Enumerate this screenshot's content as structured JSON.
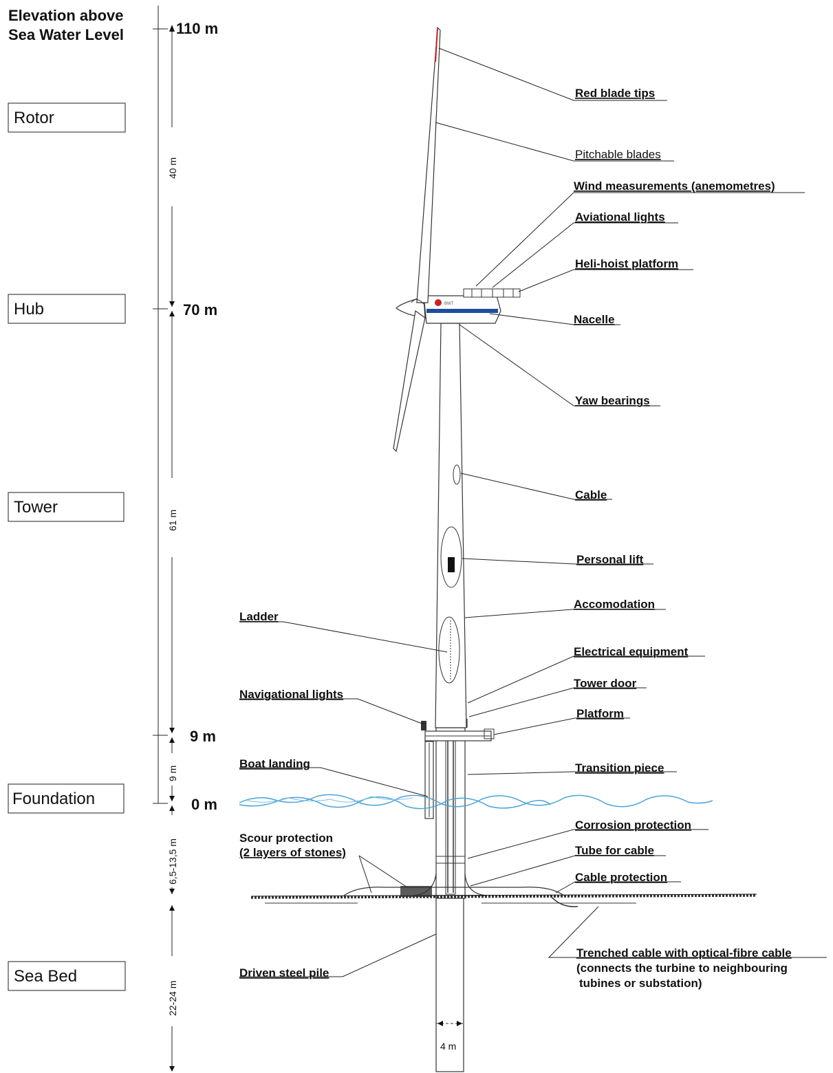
{
  "header": {
    "title_line1": "Elevation above",
    "title_line2": "Sea Water Level"
  },
  "sections": {
    "rotor": "Rotor",
    "hub": "Hub",
    "tower": "Tower",
    "foundation": "Foundation",
    "sea_bed": "Sea Bed"
  },
  "elevations": {
    "e110": "110 m",
    "e70": "70 m",
    "e9": "9 m",
    "e0": "0 m"
  },
  "dimensions": {
    "d40": "40 m",
    "d61": "61 m",
    "d9": "9 m",
    "d65": "6,5-13,5 m",
    "d22": "22-24 m",
    "width": "4 m"
  },
  "labels": {
    "red_blade_tips": "Red blade tips",
    "pitchable_blades": "Pitchable blades",
    "wind_measurements": "Wind measurements (anemometres)",
    "aviational_lights": "Aviational lights",
    "heli_hoist": "Heli-hoist platform",
    "nacelle": "Nacelle",
    "yaw_bearings": "Yaw bearings",
    "cable": "Cable",
    "personal_lift": "Personal lift",
    "accomodation": "Accomodation",
    "ladder": "Ladder",
    "electrical_equipment": "Electrical equipment",
    "tower_door": "Tower door",
    "navigational_lights": "Navigational lights",
    "platform": "Platform",
    "boat_landing": "Boat landing",
    "transition_piece": "Transition piece",
    "corrosion_protection": "Corrosion protection",
    "scour_line1": "Scour protection",
    "scour_line2": "(2 layers of stones)",
    "tube_for_cable": "Tube for cable",
    "cable_protection": "Cable protection",
    "trenched_line1": "Trenched cable with optical-fibre cable",
    "trenched_line2": "(connects the turbine to neighbouring",
    "trenched_line3": "tubines or substation)",
    "driven_pile": "Driven steel pile"
  },
  "colors": {
    "water": "#4aa3d8",
    "nacelle_stripe": "#1f4e9a",
    "blade_tip": "#cc2222"
  }
}
